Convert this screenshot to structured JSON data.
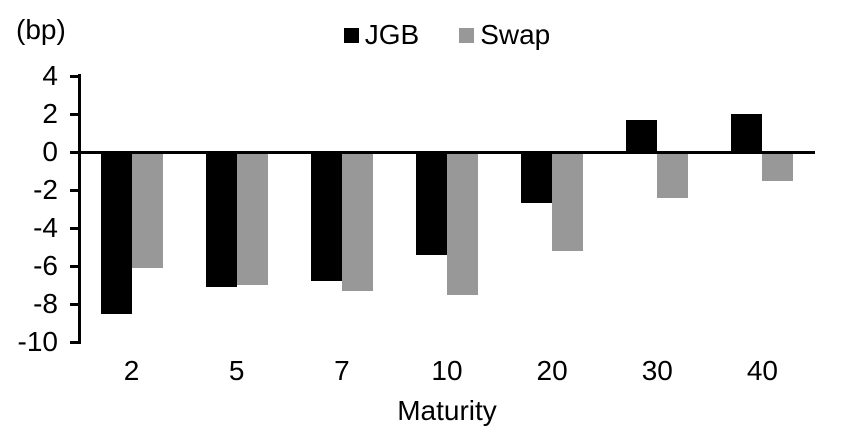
{
  "chart_data": {
    "type": "bar",
    "unit_label": "(bp)",
    "xlabel": "Maturity",
    "categories": [
      "2",
      "5",
      "7",
      "10",
      "20",
      "30",
      "40"
    ],
    "series": [
      {
        "name": "JGB",
        "color": "#000000",
        "values": [
          -8.5,
          -7.1,
          -6.8,
          -5.4,
          -2.7,
          1.7,
          2.0
        ]
      },
      {
        "name": "Swap",
        "color": "#989898",
        "values": [
          -6.1,
          -7.0,
          -7.3,
          -7.5,
          -5.2,
          -2.4,
          -1.5
        ]
      }
    ],
    "ylim": [
      -10,
      4
    ],
    "yticks": [
      4,
      2,
      0,
      -2,
      -4,
      -6,
      -8,
      -10
    ],
    "grid": false,
    "legend_position": "top-center"
  }
}
